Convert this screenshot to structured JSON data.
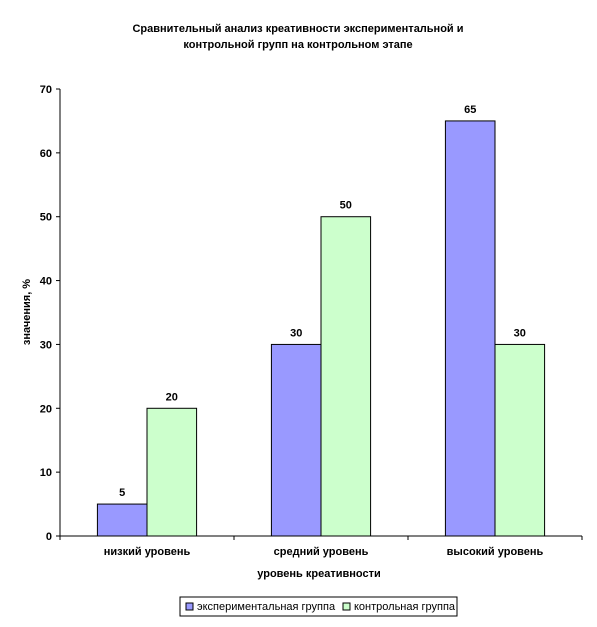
{
  "chart_data": {
    "type": "bar",
    "title_lines": [
      "Сравнительный анализ креативности экспериментальной и",
      "контрольной групп на контрольном этапе"
    ],
    "xlabel": "уровень креативности",
    "ylabel": "значения, %",
    "categories": [
      "низкий уровень",
      "средний уровень",
      "высокий уровень"
    ],
    "series": [
      {
        "name": "экспериментальная группа",
        "values": [
          5,
          30,
          65
        ],
        "color": "#9999ff"
      },
      {
        "name": "контрольная группа",
        "values": [
          20,
          50,
          30
        ],
        "color": "#ccffcc"
      }
    ],
    "ylim": [
      0,
      70
    ],
    "yticks": [
      "0",
      "10",
      "20",
      "30",
      "40",
      "50",
      "60",
      "70"
    ],
    "grid": false,
    "legend_position": "bottom"
  }
}
